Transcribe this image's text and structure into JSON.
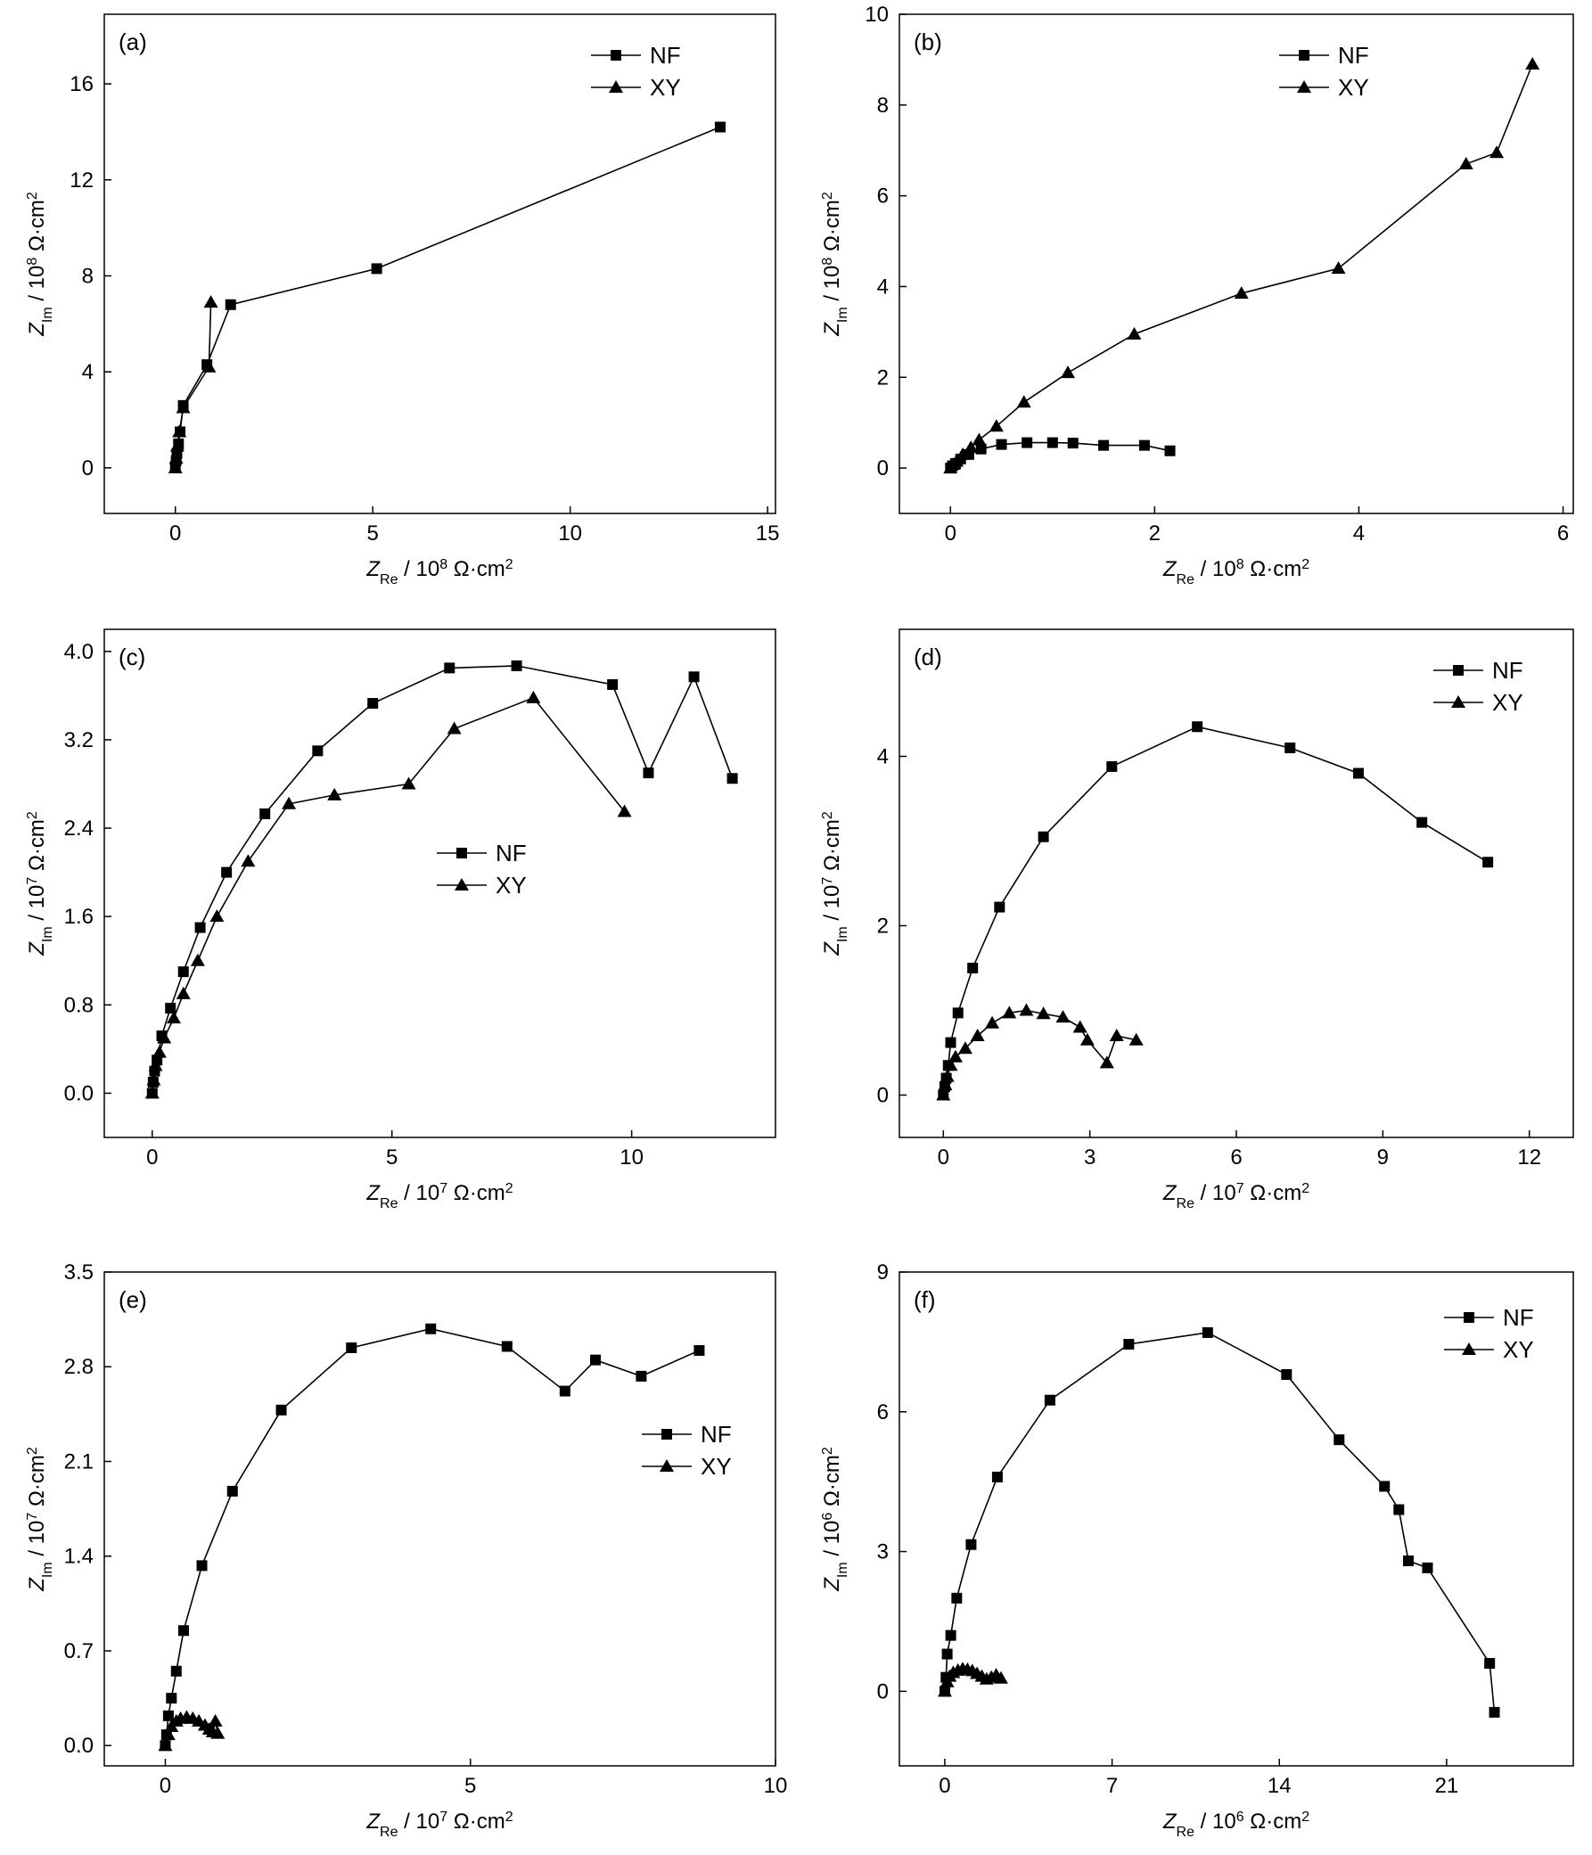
{
  "chart_data": [
    {
      "type": "line",
      "panel_label": "(a)",
      "xlabel": {
        "main": "Z",
        "sub": "Re",
        "unit_pre": " / 10",
        "unit_exp": "8",
        "unit_post": " Ω·cm",
        "unit_sq": "2"
      },
      "ylabel": {
        "main": "Z",
        "sub": "Im",
        "unit_pre": " / 10",
        "unit_exp": "8",
        "unit_post": " Ω·cm",
        "unit_sq": "2"
      },
      "xlim": [
        -1.8,
        15.2
      ],
      "ylim": [
        -1.9,
        18.9
      ],
      "xticks": [
        0,
        5,
        10,
        15
      ],
      "xtick_labels": [
        "0",
        "5",
        "10",
        "15"
      ],
      "yticks": [
        0,
        4,
        8,
        12,
        16
      ],
      "ytick_labels": [
        "0",
        "4",
        "8",
        "12",
        "16"
      ],
      "legend_position": "top-right",
      "series": [
        {
          "name": "NF",
          "marker": "square",
          "x": [
            0.0,
            0.02,
            0.04,
            0.08,
            0.12,
            0.2,
            0.8,
            1.4,
            5.1,
            13.8
          ],
          "y": [
            0.0,
            0.3,
            0.6,
            1.0,
            1.5,
            2.6,
            4.3,
            6.8,
            8.3,
            14.2
          ]
        },
        {
          "name": "XY",
          "marker": "triangle",
          "x": [
            0.0,
            0.02,
            0.05,
            0.1,
            0.2,
            0.85,
            0.9
          ],
          "y": [
            0.0,
            0.4,
            0.9,
            1.5,
            2.5,
            4.2,
            6.9
          ]
        }
      ]
    },
    {
      "type": "line",
      "panel_label": "(b)",
      "xlabel": {
        "main": "Z",
        "sub": "Re",
        "unit_pre": " / 10",
        "unit_exp": "8",
        "unit_post": " Ω·cm",
        "unit_sq": "2"
      },
      "ylabel": {
        "main": "Z",
        "sub": "Im",
        "unit_pre": " / 10",
        "unit_exp": "8",
        "unit_post": " Ω·cm",
        "unit_sq": "2"
      },
      "xlim": [
        -0.5,
        6.1
      ],
      "ylim": [
        -1.0,
        10.0
      ],
      "xticks": [
        0,
        2,
        4,
        6
      ],
      "xtick_labels": [
        "0",
        "2",
        "4",
        "6"
      ],
      "yticks": [
        0,
        2,
        4,
        6,
        8,
        10
      ],
      "ytick_labels": [
        "0",
        "2",
        "4",
        "6",
        "8",
        "10"
      ],
      "legend_position": "top-left",
      "series": [
        {
          "name": "NF",
          "marker": "square",
          "x": [
            0.0,
            0.02,
            0.05,
            0.1,
            0.18,
            0.3,
            0.5,
            0.75,
            1.0,
            1.2,
            1.5,
            1.9,
            2.15
          ],
          "y": [
            0.0,
            0.05,
            0.1,
            0.2,
            0.3,
            0.42,
            0.52,
            0.56,
            0.56,
            0.55,
            0.5,
            0.5,
            0.38
          ]
        },
        {
          "name": "XY",
          "marker": "triangle",
          "x": [
            0.0,
            0.03,
            0.06,
            0.12,
            0.2,
            0.28,
            0.45,
            0.72,
            1.15,
            1.8,
            2.85,
            3.8,
            5.05,
            5.35,
            5.7
          ],
          "y": [
            0.0,
            0.08,
            0.15,
            0.3,
            0.45,
            0.62,
            0.92,
            1.45,
            2.1,
            2.95,
            3.85,
            4.4,
            6.7,
            6.95,
            8.9
          ]
        }
      ]
    },
    {
      "type": "line",
      "panel_label": "(c)",
      "xlabel": {
        "main": "Z",
        "sub": "Re",
        "unit_pre": " / 10",
        "unit_exp": "7",
        "unit_post": " Ω·cm",
        "unit_sq": "2"
      },
      "ylabel": {
        "main": "Z",
        "sub": "Im",
        "unit_pre": " / 10",
        "unit_exp": "7",
        "unit_post": " Ω·cm",
        "unit_sq": "2"
      },
      "xlim": [
        -1.0,
        13.0
      ],
      "ylim": [
        -0.4,
        4.2
      ],
      "xticks": [
        0,
        5,
        10
      ],
      "xtick_labels": [
        "0",
        "5",
        "10"
      ],
      "yticks": [
        0.0,
        0.8,
        1.6,
        2.4,
        3.2,
        4.0
      ],
      "ytick_labels": [
        "0.0",
        "0.8",
        "1.6",
        "2.4",
        "3.2",
        "4.0"
      ],
      "legend_position": "center",
      "series": [
        {
          "name": "NF",
          "marker": "square",
          "x": [
            0.0,
            0.02,
            0.05,
            0.1,
            0.2,
            0.38,
            0.65,
            1.0,
            1.55,
            2.35,
            3.45,
            4.6,
            6.2,
            7.6,
            9.6,
            10.35,
            11.3,
            12.1
          ],
          "y": [
            0.0,
            0.1,
            0.2,
            0.3,
            0.52,
            0.77,
            1.1,
            1.5,
            2.0,
            2.53,
            3.1,
            3.53,
            3.85,
            3.87,
            3.7,
            2.9,
            3.77,
            2.85
          ]
        },
        {
          "name": "XY",
          "marker": "triangle",
          "x": [
            0.0,
            0.03,
            0.07,
            0.15,
            0.25,
            0.45,
            0.65,
            0.95,
            1.35,
            2.0,
            2.85,
            3.8,
            5.35,
            6.3,
            7.95,
            9.85
          ],
          "y": [
            0.0,
            0.12,
            0.25,
            0.37,
            0.5,
            0.68,
            0.9,
            1.2,
            1.6,
            2.1,
            2.62,
            2.7,
            2.8,
            3.3,
            3.58,
            2.55
          ]
        }
      ]
    },
    {
      "type": "line",
      "panel_label": "(d)",
      "xlabel": {
        "main": "Z",
        "sub": "Re",
        "unit_pre": " / 10",
        "unit_exp": "7",
        "unit_post": " Ω·cm",
        "unit_sq": "2"
      },
      "ylabel": {
        "main": "Z",
        "sub": "Im",
        "unit_pre": " / 10",
        "unit_exp": "7",
        "unit_post": " Ω·cm",
        "unit_sq": "2"
      },
      "xlim": [
        -0.9,
        12.9
      ],
      "ylim": [
        -0.5,
        5.5
      ],
      "xticks": [
        0,
        3,
        6,
        9,
        12
      ],
      "xtick_labels": [
        "0",
        "3",
        "6",
        "9",
        "12"
      ],
      "yticks": [
        0,
        2,
        4
      ],
      "ytick_labels": [
        "0",
        "2",
        "4"
      ],
      "legend_position": "top-right",
      "series": [
        {
          "name": "NF",
          "marker": "square",
          "x": [
            0.0,
            0.03,
            0.06,
            0.1,
            0.15,
            0.3,
            0.6,
            1.15,
            2.05,
            3.45,
            5.2,
            7.1,
            8.5,
            9.8,
            11.15
          ],
          "y": [
            0.0,
            0.1,
            0.2,
            0.35,
            0.62,
            0.97,
            1.5,
            2.22,
            3.05,
            3.88,
            4.35,
            4.1,
            3.8,
            3.22,
            2.75
          ]
        },
        {
          "name": "XY",
          "marker": "triangle",
          "x": [
            0.0,
            0.04,
            0.08,
            0.15,
            0.25,
            0.45,
            0.7,
            1.0,
            1.35,
            1.7,
            2.05,
            2.45,
            2.8,
            2.95,
            3.35,
            3.55,
            3.95
          ],
          "y": [
            0.0,
            0.12,
            0.22,
            0.35,
            0.45,
            0.55,
            0.7,
            0.85,
            0.97,
            1.0,
            0.96,
            0.92,
            0.8,
            0.65,
            0.38,
            0.7,
            0.65
          ]
        }
      ]
    },
    {
      "type": "line",
      "panel_label": "(e)",
      "xlabel": {
        "main": "Z",
        "sub": "Re",
        "unit_pre": " / 10",
        "unit_exp": "7",
        "unit_post": " Ω·cm",
        "unit_sq": "2"
      },
      "ylabel": {
        "main": "Z",
        "sub": "Im",
        "unit_pre": " / 10",
        "unit_exp": "7",
        "unit_post": " Ω·cm",
        "unit_sq": "2"
      },
      "xlim": [
        -1.0,
        10.0
      ],
      "ylim": [
        -0.15,
        3.5
      ],
      "xticks": [
        0,
        5,
        10
      ],
      "xtick_labels": [
        "0",
        "5",
        "10"
      ],
      "yticks": [
        0.0,
        0.7,
        1.4,
        2.1,
        2.8,
        3.5
      ],
      "ytick_labels": [
        "0.0",
        "0.7",
        "1.4",
        "2.1",
        "2.8",
        "3.5"
      ],
      "legend_position": "center-right",
      "series": [
        {
          "name": "NF",
          "marker": "square",
          "x": [
            0.0,
            0.02,
            0.05,
            0.1,
            0.18,
            0.3,
            0.6,
            1.1,
            1.9,
            3.05,
            4.35,
            5.6,
            6.55,
            7.05,
            7.8,
            8.75
          ],
          "y": [
            0.0,
            0.08,
            0.22,
            0.35,
            0.55,
            0.85,
            1.33,
            1.88,
            2.48,
            2.94,
            3.08,
            2.95,
            2.62,
            2.85,
            2.73,
            2.92
          ]
        },
        {
          "name": "XY",
          "marker": "triangle",
          "x": [
            0.0,
            0.05,
            0.1,
            0.18,
            0.25,
            0.35,
            0.45,
            0.55,
            0.65,
            0.72,
            0.78,
            0.82,
            0.86
          ],
          "y": [
            0.0,
            0.08,
            0.14,
            0.18,
            0.2,
            0.21,
            0.2,
            0.18,
            0.15,
            0.12,
            0.1,
            0.18,
            0.09
          ]
        }
      ]
    },
    {
      "type": "line",
      "panel_label": "(f)",
      "xlabel": {
        "main": "Z",
        "sub": "Re",
        "unit_pre": " / 10",
        "unit_exp": "6",
        "unit_post": " Ω·cm",
        "unit_sq": "2"
      },
      "ylabel": {
        "main": "Z",
        "sub": "Im",
        "unit_pre": " / 10",
        "unit_exp": "6",
        "unit_post": " Ω·cm",
        "unit_sq": "2"
      },
      "xlim": [
        -1.9,
        26.3
      ],
      "ylim": [
        -1.6,
        9.0
      ],
      "xticks": [
        0,
        7,
        14,
        21
      ],
      "xtick_labels": [
        "0",
        "7",
        "14",
        "21"
      ],
      "yticks": [
        0,
        3,
        6,
        9
      ],
      "ytick_labels": [
        "0",
        "3",
        "6",
        "9"
      ],
      "legend_position": "top-right",
      "series": [
        {
          "name": "NF",
          "marker": "square",
          "x": [
            0.0,
            0.05,
            0.1,
            0.25,
            0.5,
            1.1,
            2.2,
            4.4,
            7.7,
            11.0,
            14.3,
            16.5,
            18.4,
            19.0,
            19.4,
            20.2,
            22.8,
            23.0
          ],
          "y": [
            0.0,
            0.3,
            0.8,
            1.2,
            2.0,
            3.15,
            4.6,
            6.25,
            7.45,
            7.7,
            6.8,
            5.4,
            4.4,
            3.9,
            2.8,
            2.65,
            0.6,
            -0.45
          ]
        },
        {
          "name": "XY",
          "marker": "triangle",
          "x": [
            0.0,
            0.1,
            0.2,
            0.35,
            0.55,
            0.75,
            0.95,
            1.15,
            1.35,
            1.55,
            1.75,
            1.95,
            2.15,
            2.35
          ],
          "y": [
            0.0,
            0.2,
            0.32,
            0.4,
            0.45,
            0.48,
            0.47,
            0.44,
            0.38,
            0.32,
            0.26,
            0.3,
            0.35,
            0.28
          ]
        }
      ]
    }
  ]
}
